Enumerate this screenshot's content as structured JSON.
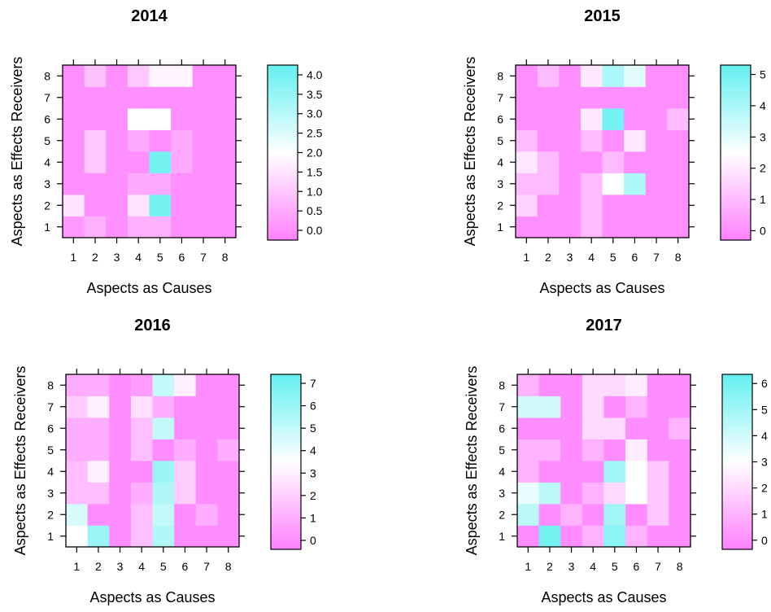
{
  "chart_data": [
    {
      "type": "heatmap",
      "title": "2014",
      "xlabel": "Aspects as Causes",
      "ylabel": "Aspects as Effects Receivers",
      "x_ticks": [
        "1",
        "2",
        "3",
        "4",
        "5",
        "6",
        "7",
        "8"
      ],
      "y_ticks": [
        "1",
        "2",
        "3",
        "4",
        "5",
        "6",
        "7",
        "8"
      ],
      "colorbar_range": [
        -0.25,
        4.25
      ],
      "colorbar_ticks": [
        "0.0",
        "0.5",
        "1.0",
        "1.5",
        "2.0",
        "2.5",
        "3.0",
        "3.5",
        "4.0"
      ],
      "colorbar_tick_values": [
        0,
        0.5,
        1,
        1.5,
        2,
        2.5,
        3,
        3.5,
        4
      ],
      "values": [
        [
          0.2,
          0.6,
          0.0,
          0.6,
          0.6,
          0.0,
          0.0,
          0.0
        ],
        [
          1.5,
          0.0,
          0.0,
          1.5,
          4.0,
          0.0,
          0.0,
          0.0
        ],
        [
          0.0,
          0.0,
          0.0,
          0.5,
          0.5,
          0.0,
          0.0,
          0.0
        ],
        [
          0.0,
          1.0,
          0.0,
          0.0,
          4.0,
          0.5,
          0.0,
          0.0
        ],
        [
          0.0,
          1.0,
          0.0,
          0.5,
          0.0,
          0.5,
          0.0,
          0.0
        ],
        [
          0.0,
          0.0,
          0.0,
          2.0,
          2.0,
          0.0,
          0.0,
          0.0
        ],
        [
          0.0,
          0.0,
          0.0,
          0.0,
          0.0,
          0.0,
          0.0,
          0.0
        ],
        [
          0.0,
          0.9,
          0.0,
          1.0,
          1.8,
          1.8,
          0.0,
          0.0
        ]
      ]
    },
    {
      "type": "heatmap",
      "title": "2015",
      "xlabel": "Aspects as Causes",
      "ylabel": "Aspects as Effects Receivers",
      "x_ticks": [
        "1",
        "2",
        "3",
        "4",
        "5",
        "6",
        "7",
        "8"
      ],
      "y_ticks": [
        "1",
        "2",
        "3",
        "4",
        "5",
        "6",
        "7",
        "8"
      ],
      "colorbar_range": [
        -0.3,
        5.3
      ],
      "colorbar_ticks": [
        "0",
        "1",
        "2",
        "3",
        "4",
        "5"
      ],
      "colorbar_tick_values": [
        0,
        1,
        2,
        3,
        4,
        5
      ],
      "values": [
        [
          0.0,
          0.0,
          0.0,
          1.0,
          0.0,
          0.0,
          0.0,
          0.0
        ],
        [
          1.5,
          0.0,
          0.0,
          1.0,
          0.0,
          0.0,
          0.0,
          0.0
        ],
        [
          1.0,
          1.0,
          0.0,
          1.0,
          2.5,
          4.0,
          0.0,
          0.0
        ],
        [
          2.0,
          1.0,
          0.0,
          0.0,
          1.0,
          0.0,
          0.0,
          0.0
        ],
        [
          1.0,
          0.0,
          0.0,
          1.0,
          0.0,
          2.0,
          0.0,
          0.0
        ],
        [
          0.0,
          0.0,
          0.0,
          2.0,
          5.0,
          0.0,
          0.0,
          1.0
        ],
        [
          0.0,
          0.0,
          0.0,
          0.0,
          0.0,
          0.0,
          0.0,
          0.0
        ],
        [
          0.0,
          1.0,
          0.0,
          2.0,
          4.0,
          3.0,
          0.0,
          0.0
        ]
      ]
    },
    {
      "type": "heatmap",
      "title": "2016",
      "xlabel": "Aspects as Causes",
      "ylabel": "Aspects as Effects Receivers",
      "x_ticks": [
        "1",
        "2",
        "3",
        "4",
        "5",
        "6",
        "7",
        "8"
      ],
      "y_ticks": [
        "1",
        "2",
        "3",
        "4",
        "5",
        "6",
        "7",
        "8"
      ],
      "colorbar_range": [
        -0.4,
        7.4
      ],
      "colorbar_ticks": [
        "0",
        "1",
        "2",
        "3",
        "4",
        "5",
        "6",
        "7"
      ],
      "colorbar_tick_values": [
        0,
        1,
        2,
        3,
        4,
        5,
        6,
        7
      ],
      "values": [
        [
          3.5,
          6.0,
          0.0,
          1.5,
          5.5,
          0.0,
          0.0,
          0.0
        ],
        [
          4.5,
          0.0,
          0.0,
          1.5,
          5.0,
          0.0,
          1.0,
          0.0
        ],
        [
          1.5,
          1.5,
          0.0,
          1.0,
          5.5,
          2.0,
          0.0,
          0.0
        ],
        [
          1.5,
          3.0,
          0.0,
          0.0,
          6.0,
          2.0,
          0.0,
          0.0
        ],
        [
          1.0,
          1.0,
          0.0,
          1.5,
          0.0,
          1.0,
          0.0,
          1.0
        ],
        [
          1.0,
          1.0,
          0.0,
          1.5,
          5.0,
          0.0,
          0.0,
          0.0
        ],
        [
          2.0,
          3.0,
          0.0,
          2.5,
          1.0,
          0.0,
          0.0,
          0.0
        ],
        [
          1.0,
          1.0,
          0.0,
          0.5,
          5.0,
          3.0,
          0.0,
          0.0
        ]
      ]
    },
    {
      "type": "heatmap",
      "title": "2017",
      "xlabel": "Aspects as Causes",
      "ylabel": "Aspects as Effects Receivers",
      "x_ticks": [
        "1",
        "2",
        "3",
        "4",
        "5",
        "6",
        "7",
        "8"
      ],
      "y_ticks": [
        "1",
        "2",
        "3",
        "4",
        "5",
        "6",
        "7",
        "8"
      ],
      "colorbar_range": [
        -0.35,
        6.35
      ],
      "colorbar_ticks": [
        "0",
        "1",
        "2",
        "3",
        "4",
        "5",
        "6"
      ],
      "colorbar_tick_values": [
        0,
        1,
        2,
        3,
        4,
        5,
        6
      ],
      "values": [
        [
          0.0,
          6.0,
          0.0,
          1.0,
          5.5,
          1.0,
          0.0,
          0.0
        ],
        [
          4.5,
          0.0,
          1.0,
          0.0,
          5.0,
          0.0,
          1.5,
          0.0
        ],
        [
          3.5,
          4.5,
          0.0,
          1.0,
          2.0,
          3.0,
          1.5,
          0.0
        ],
        [
          1.0,
          0.0,
          0.0,
          0.0,
          5.0,
          3.0,
          1.5,
          0.0
        ],
        [
          1.0,
          1.0,
          0.0,
          1.0,
          0.0,
          2.5,
          0.0,
          0.0
        ],
        [
          0.0,
          0.0,
          0.0,
          2.0,
          2.0,
          0.0,
          0.0,
          1.0
        ],
        [
          4.0,
          4.0,
          0.0,
          2.0,
          0.0,
          1.0,
          0.0,
          0.0
        ],
        [
          1.0,
          0.0,
          0.0,
          2.0,
          2.0,
          2.5,
          0.0,
          0.0
        ]
      ]
    }
  ]
}
